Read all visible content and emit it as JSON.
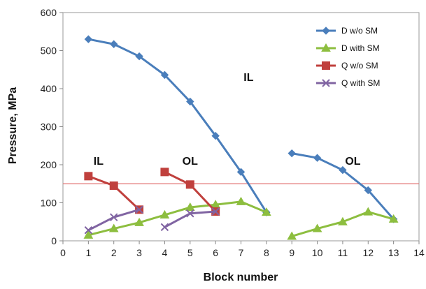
{
  "chart_data": {
    "type": "line",
    "title": "",
    "xlabel": "Block number",
    "ylabel": "Pressure, MPa",
    "xlim": [
      0,
      14
    ],
    "ylim": [
      0,
      600
    ],
    "x_ticks": [
      0,
      1,
      2,
      3,
      4,
      5,
      6,
      7,
      8,
      9,
      10,
      11,
      12,
      13,
      14
    ],
    "y_ticks": [
      0,
      100,
      200,
      300,
      400,
      500,
      600
    ],
    "grid": false,
    "legend_position": "top-right",
    "series": [
      {
        "name": "D w/o SM",
        "color": "#4A7EBB",
        "marker": "diamond",
        "segments": [
          [
            [
              1,
              530
            ],
            [
              2,
              517
            ],
            [
              3,
              485
            ],
            [
              4,
              436
            ],
            [
              5,
              366
            ],
            [
              6,
              276
            ],
            [
              7,
              181
            ],
            [
              8,
              75
            ]
          ],
          [
            [
              9,
              230
            ],
            [
              10,
              218
            ],
            [
              11,
              186
            ],
            [
              12,
              133
            ],
            [
              13,
              57
            ]
          ]
        ]
      },
      {
        "name": "D with SM",
        "color": "#8DBE3F",
        "marker": "triangle",
        "segments": [
          [
            [
              1,
              15
            ],
            [
              2,
              32
            ],
            [
              3,
              48
            ],
            [
              4,
              68
            ],
            [
              5,
              88
            ],
            [
              6,
              95
            ],
            [
              7,
              103
            ],
            [
              8,
              75
            ]
          ],
          [
            [
              9,
              12
            ],
            [
              10,
              32
            ],
            [
              11,
              50
            ],
            [
              12,
              76
            ],
            [
              13,
              57
            ]
          ]
        ]
      },
      {
        "name": "Q w/o SM",
        "color": "#C0403D",
        "marker": "square",
        "segments": [
          [
            [
              1,
              170
            ],
            [
              2,
              145
            ],
            [
              3,
              82
            ]
          ],
          [
            [
              4,
              181
            ],
            [
              5,
              148
            ],
            [
              6,
              77
            ]
          ]
        ]
      },
      {
        "name": "Q with SM",
        "color": "#8064A2",
        "marker": "x",
        "segments": [
          [
            [
              1,
              28
            ],
            [
              2,
              62
            ],
            [
              3,
              82
            ]
          ],
          [
            [
              4,
              36
            ],
            [
              5,
              72
            ],
            [
              6,
              77
            ]
          ]
        ]
      }
    ],
    "reference_lines": [
      {
        "y": 150,
        "color": "#E07070"
      }
    ],
    "annotations": [
      {
        "text": "IL",
        "x": 7.3,
        "y": 420
      },
      {
        "text": "IL",
        "x": 1.4,
        "y": 200
      },
      {
        "text": "OL",
        "x": 5.0,
        "y": 200
      },
      {
        "text": "OL",
        "x": 11.4,
        "y": 200
      }
    ]
  }
}
